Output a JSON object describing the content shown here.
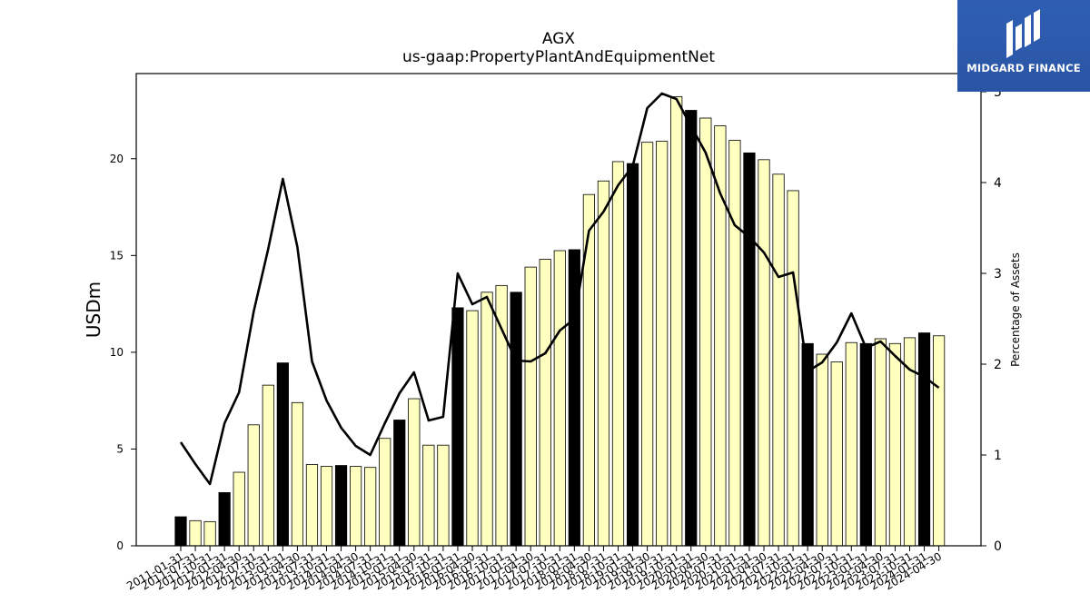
{
  "chart_data": {
    "type": "bar",
    "title": "AGX",
    "subtitle": "us-gaap:PropertyPlantAndEquipmentNet",
    "ylabel": "USDm",
    "ylabel_right": "Percentage of Assets",
    "ylim": [
      0,
      24.4
    ],
    "ylim_right": [
      0,
      5.2
    ],
    "yticks": [
      0,
      5,
      10,
      15,
      20
    ],
    "yticks_right": [
      0,
      1,
      2,
      3,
      4,
      5
    ],
    "grid": false,
    "categories": [
      "2011-01-31",
      "2011-07-31",
      "2011-10-31",
      "2012-01-31",
      "2012-04-30",
      "2012-07-31",
      "2012-10-31",
      "2013-01-31",
      "2013-04-30",
      "2013-07-31",
      "2013-10-31",
      "2014-01-31",
      "2014-04-30",
      "2014-07-31",
      "2014-10-31",
      "2015-01-31",
      "2015-04-30",
      "2015-07-31",
      "2015-10-31",
      "2016-01-31",
      "2016-04-30",
      "2016-07-31",
      "2016-10-31",
      "2017-01-31",
      "2017-04-30",
      "2017-07-31",
      "2017-10-31",
      "2018-01-31",
      "2018-04-30",
      "2018-07-31",
      "2018-10-31",
      "2019-01-31",
      "2019-04-30",
      "2019-07-31",
      "2019-10-31",
      "2020-01-31",
      "2020-04-30",
      "2020-07-31",
      "2020-10-31",
      "2021-01-31",
      "2021-04-30",
      "2021-07-31",
      "2021-10-31",
      "2022-01-31",
      "2022-04-30",
      "2022-07-31",
      "2022-10-31",
      "2023-01-31",
      "2023-04-30",
      "2023-07-31",
      "2023-10-31",
      "2024-01-31",
      "2024-04-30"
    ],
    "series": [
      {
        "kind": "bar",
        "values": [
          1.5,
          1.3,
          1.25,
          2.75,
          3.8,
          6.25,
          8.3,
          9.45,
          7.4,
          4.2,
          4.1,
          4.15,
          4.1,
          4.05,
          5.55,
          6.5,
          7.6,
          5.2,
          5.2,
          12.3,
          12.15,
          13.1,
          13.45,
          13.1,
          14.4,
          14.8,
          15.25,
          15.3,
          18.15,
          18.85,
          19.85,
          19.75,
          20.85,
          20.9,
          23.2,
          22.5,
          22.1,
          21.7,
          20.95,
          20.3,
          19.95,
          19.2,
          18.35,
          10.45,
          9.9,
          9.5,
          10.5,
          10.45,
          10.7,
          10.45,
          10.75,
          11.0,
          10.85
        ],
        "highlight": [
          true,
          false,
          false,
          true,
          false,
          false,
          false,
          true,
          false,
          false,
          false,
          true,
          false,
          false,
          false,
          true,
          false,
          false,
          false,
          true,
          false,
          false,
          false,
          true,
          false,
          false,
          false,
          true,
          false,
          false,
          false,
          true,
          false,
          false,
          false,
          true,
          false,
          false,
          false,
          true,
          false,
          false,
          false,
          true,
          false,
          false,
          false,
          true,
          false,
          false,
          false,
          true,
          false
        ],
        "color": "#ffffc0",
        "highlight_color": "#000000"
      },
      {
        "kind": "line",
        "axis": "right",
        "values": [
          1.14,
          0.9,
          0.68,
          1.35,
          1.69,
          2.58,
          3.27,
          4.04,
          3.29,
          2.03,
          1.6,
          1.3,
          1.1,
          1.0,
          1.35,
          1.68,
          1.91,
          1.38,
          1.42,
          3.0,
          2.66,
          2.74,
          2.39,
          2.04,
          2.03,
          2.12,
          2.37,
          2.5,
          3.47,
          3.68,
          3.97,
          4.18,
          4.82,
          4.98,
          4.92,
          4.62,
          4.33,
          3.88,
          3.53,
          3.4,
          3.23,
          2.96,
          3.01,
          1.92,
          2.02,
          2.24,
          2.56,
          2.18,
          2.25,
          2.09,
          1.94,
          1.86,
          1.74
        ],
        "color": "#000000"
      }
    ]
  },
  "logo": {
    "brand": "MIDGARD FINANCE"
  }
}
